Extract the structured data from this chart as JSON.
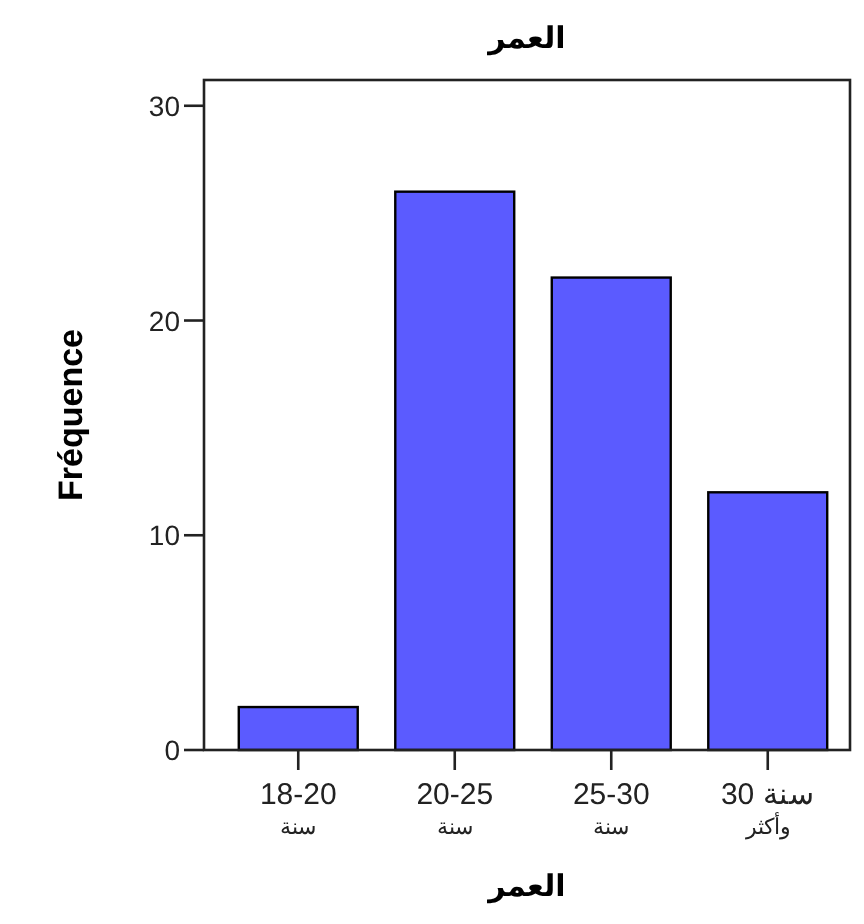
{
  "chart_data": {
    "type": "bar",
    "title": "العمر",
    "xlabel": "العمر",
    "ylabel": "Fréquence",
    "categories": [
      "18-20\nسنة",
      "20-25\nسنة",
      "25-30\nسنة",
      "30 سنة\nوأكثر"
    ],
    "values": [
      2,
      26,
      22,
      12
    ],
    "color": "#5b5bff",
    "ylim": [
      0,
      31.2
    ],
    "yticks": [
      0,
      10,
      20,
      30
    ],
    "grid": false
  }
}
